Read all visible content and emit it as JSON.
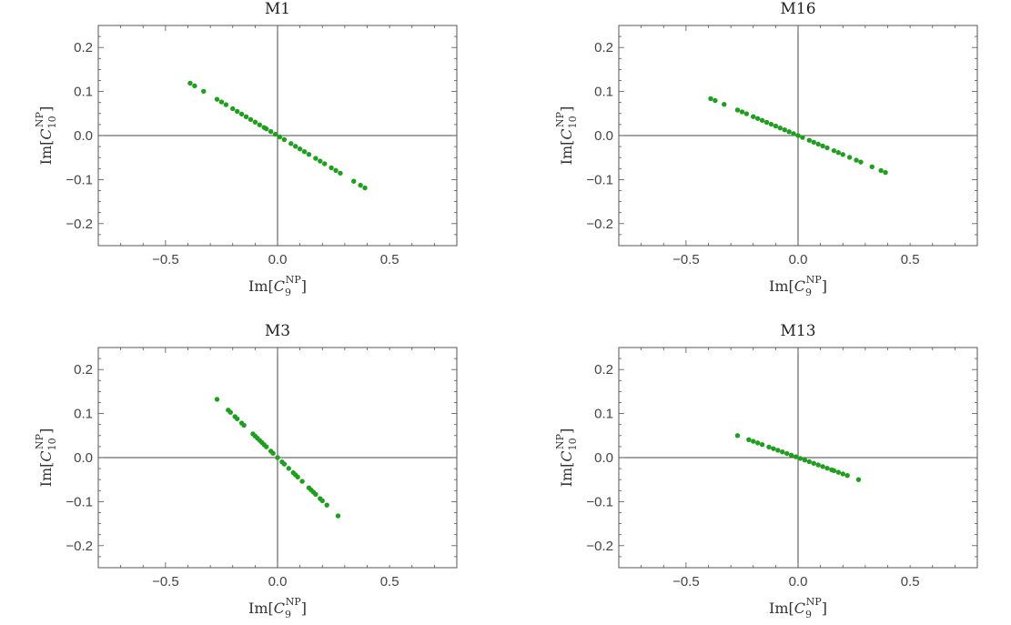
{
  "colors": {
    "points": "#1f9e1f",
    "frame": "#555555",
    "zero_line": "#444444",
    "text": "#333333"
  },
  "chart_data": [
    {
      "type": "scatter",
      "title": "M1",
      "xlabel": {
        "prefix": "Im[",
        "symbol": "C",
        "sub": "9",
        "sup": "NP",
        "suffix": "]"
      },
      "ylabel": {
        "prefix": "Im[",
        "symbol": "C",
        "sub": "10",
        "sup": "NP",
        "suffix": "]"
      },
      "xlim": [
        -0.8,
        0.8
      ],
      "ylim": [
        -0.25,
        0.25
      ],
      "xticks": [
        -0.5,
        0.0,
        0.5
      ],
      "xtick_labels": [
        "−0.5",
        "0.0",
        "0.5"
      ],
      "yticks": [
        -0.2,
        -0.1,
        0.0,
        0.1,
        0.2
      ],
      "ytick_labels": [
        "−0.2",
        "−0.1",
        "0.0",
        "0.1",
        "0.2"
      ],
      "grid": false,
      "slope": -0.305,
      "x": [
        -0.39,
        -0.37,
        -0.33,
        -0.27,
        -0.25,
        -0.23,
        -0.2,
        -0.18,
        -0.16,
        -0.14,
        -0.12,
        -0.1,
        -0.08,
        -0.06,
        -0.05,
        -0.03,
        -0.01,
        0.01,
        0.03,
        0.06,
        0.08,
        0.1,
        0.12,
        0.14,
        0.17,
        0.19,
        0.21,
        0.24,
        0.26,
        0.28,
        0.34,
        0.37,
        0.39
      ]
    },
    {
      "type": "scatter",
      "title": "M16",
      "xlabel": {
        "prefix": "Im[",
        "symbol": "C",
        "sub": "9",
        "sup": "NP",
        "suffix": "]"
      },
      "ylabel": {
        "prefix": "Im[",
        "symbol": "C",
        "sub": "10",
        "sup": "NP",
        "suffix": "]"
      },
      "xlim": [
        -0.8,
        0.8
      ],
      "ylim": [
        -0.25,
        0.25
      ],
      "xticks": [
        -0.5,
        0.0,
        0.5
      ],
      "xtick_labels": [
        "−0.5",
        "0.0",
        "0.5"
      ],
      "yticks": [
        -0.2,
        -0.1,
        0.0,
        0.1,
        0.2
      ],
      "ytick_labels": [
        "−0.2",
        "−0.1",
        "0.0",
        "0.1",
        "0.2"
      ],
      "grid": false,
      "slope": -0.215,
      "x": [
        -0.39,
        -0.37,
        -0.33,
        -0.27,
        -0.25,
        -0.23,
        -0.2,
        -0.18,
        -0.16,
        -0.14,
        -0.12,
        -0.1,
        -0.08,
        -0.06,
        -0.04,
        -0.02,
        0.0,
        0.02,
        0.05,
        0.07,
        0.09,
        0.11,
        0.13,
        0.16,
        0.18,
        0.2,
        0.23,
        0.26,
        0.28,
        0.33,
        0.37,
        0.39
      ]
    },
    {
      "type": "scatter",
      "title": "M3",
      "xlabel": {
        "prefix": "Im[",
        "symbol": "C",
        "sub": "9",
        "sup": "NP",
        "suffix": "]"
      },
      "ylabel": {
        "prefix": "Im[",
        "symbol": "C",
        "sub": "10",
        "sup": "NP",
        "suffix": "]"
      },
      "xlim": [
        -0.8,
        0.8
      ],
      "ylim": [
        -0.25,
        0.25
      ],
      "xticks": [
        -0.5,
        0.0,
        0.5
      ],
      "xtick_labels": [
        "−0.5",
        "0.0",
        "0.5"
      ],
      "yticks": [
        -0.2,
        -0.1,
        0.0,
        0.1,
        0.2
      ],
      "ytick_labels": [
        "−0.2",
        "−0.1",
        "0.0",
        "0.1",
        "0.2"
      ],
      "grid": false,
      "slope": -0.49,
      "x": [
        -0.27,
        -0.22,
        -0.21,
        -0.19,
        -0.18,
        -0.16,
        -0.15,
        -0.11,
        -0.1,
        -0.09,
        -0.08,
        -0.07,
        -0.06,
        -0.05,
        -0.03,
        -0.02,
        0.0,
        0.02,
        0.03,
        0.05,
        0.07,
        0.08,
        0.09,
        0.11,
        0.14,
        0.15,
        0.16,
        0.17,
        0.19,
        0.2,
        0.22,
        0.27
      ]
    },
    {
      "type": "scatter",
      "title": "M13",
      "xlabel": {
        "prefix": "Im[",
        "symbol": "C",
        "sub": "9",
        "sup": "NP",
        "suffix": "]"
      },
      "ylabel": {
        "prefix": "Im[",
        "symbol": "C",
        "sub": "10",
        "sup": "NP",
        "suffix": "]"
      },
      "xlim": [
        -0.8,
        0.8
      ],
      "ylim": [
        -0.25,
        0.25
      ],
      "xticks": [
        -0.5,
        0.0,
        0.5
      ],
      "xtick_labels": [
        "−0.5",
        "0.0",
        "0.5"
      ],
      "yticks": [
        -0.2,
        -0.1,
        0.0,
        0.1,
        0.2
      ],
      "ytick_labels": [
        "−0.2",
        "−0.1",
        "0.0",
        "0.1",
        "0.2"
      ],
      "grid": false,
      "slope": -0.185,
      "x": [
        -0.27,
        -0.22,
        -0.2,
        -0.18,
        -0.16,
        -0.13,
        -0.11,
        -0.09,
        -0.07,
        -0.05,
        -0.03,
        -0.01,
        0.01,
        0.03,
        0.05,
        0.07,
        0.09,
        0.11,
        0.13,
        0.15,
        0.16,
        0.18,
        0.2,
        0.22,
        0.27
      ]
    }
  ]
}
